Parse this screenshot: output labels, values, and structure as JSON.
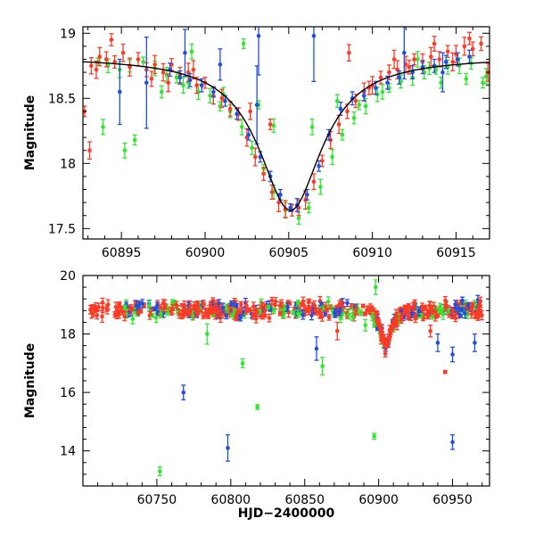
{
  "colors": {
    "green": "#2ee82e",
    "red": "#ff3a24",
    "blue": "#1f4fe0",
    "model": "#000000",
    "axis": "#000000"
  },
  "chart_data": [
    {
      "type": "scatter",
      "title": "",
      "xlabel": "",
      "ylabel": "Magnitude",
      "xlim": [
        60892.7,
        60917
      ],
      "ylim": [
        19.05,
        17.42
      ],
      "y_inverted": true,
      "xticks": [
        60895,
        60900,
        60905,
        60910,
        60915
      ],
      "yticks": [
        17.5,
        18,
        18.5,
        19
      ],
      "xtick_labels": [
        "60895",
        "60900",
        "60905",
        "60910",
        "60915"
      ],
      "ytick_labels": [
        "17.5",
        "18",
        "18.5",
        "19"
      ],
      "model": {
        "type": "line",
        "baseline_mag": 18.82,
        "peak_mag": 17.64,
        "t0": 60905.1,
        "width_days": 2.3
      },
      "series": [
        {
          "name": "green",
          "color": "#2ee82e",
          "err": 0.03,
          "x": [
            60893.6,
            60894.2,
            60894.9,
            60895.5,
            60896.3,
            60897.0,
            60897.7,
            60898.3,
            60899.0,
            60899.6,
            60900.3,
            60900.9,
            60901.5,
            60902.2,
            60902.8,
            60903.5,
            60904.1,
            60904.8,
            60905.6,
            60906.2,
            60906.9,
            60907.6,
            60908.2,
            60908.9,
            60909.6,
            60910.3,
            60911.0,
            60911.7,
            60912.4,
            60913.1,
            60913.8,
            60914.5,
            60915.2,
            60915.9,
            60916.6,
            60893.9,
            60895.2,
            60895.8,
            60897.4,
            60898.7,
            60901.1,
            60903.2,
            60904.1,
            60906.4,
            60907.9,
            60909.2,
            60910.6,
            60912.7,
            60914.1,
            60915.6,
            60916.8,
            60899.2,
            60902.3,
            60913.4
          ],
          "y": [
            18.78,
            18.75,
            18.72,
            18.75,
            18.78,
            18.73,
            18.68,
            18.66,
            18.62,
            18.55,
            18.52,
            18.44,
            18.4,
            18.28,
            18.12,
            17.96,
            17.78,
            17.64,
            17.58,
            17.66,
            17.82,
            18.05,
            18.22,
            18.35,
            18.44,
            18.53,
            18.58,
            18.63,
            18.66,
            18.7,
            18.72,
            18.74,
            18.75,
            18.77,
            18.62,
            18.28,
            18.1,
            18.18,
            18.55,
            18.6,
            18.53,
            18.45,
            18.29,
            18.28,
            18.48,
            18.45,
            18.55,
            18.8,
            18.62,
            18.65,
            18.67,
            18.86,
            18.92,
            18.73
          ]
        },
        {
          "name": "red",
          "color": "#ff3a24",
          "err": 0.04,
          "x": [
            60892.8,
            60893.2,
            60893.7,
            60894.1,
            60894.6,
            60895.1,
            60895.5,
            60896.0,
            60896.5,
            60897.0,
            60897.5,
            60898.0,
            60898.5,
            60899.0,
            60899.5,
            60900.0,
            60900.5,
            60901.0,
            60901.5,
            60902.0,
            60902.5,
            60903.0,
            60903.5,
            60904.0,
            60904.4,
            60904.8,
            60905.2,
            60905.6,
            60906.0,
            60906.5,
            60907.0,
            60907.5,
            60908.0,
            60908.5,
            60909.0,
            60909.5,
            60910.0,
            60910.5,
            60911.0,
            60911.5,
            60912.0,
            60912.5,
            60913.0,
            60913.5,
            60914.0,
            60914.5,
            60915.0,
            60915.5,
            60916.0,
            60916.5,
            60916.9,
            60893.1,
            60894.4,
            60896.8,
            60899.3,
            60902.7,
            60903.9,
            60908.6,
            60911.3,
            60913.7,
            60915.8,
            60893.5,
            60897.8,
            60909.8,
            60912.2,
            60914.8
          ],
          "y": [
            18.4,
            18.75,
            18.82,
            18.8,
            18.78,
            18.85,
            18.74,
            18.8,
            18.72,
            18.76,
            18.7,
            18.76,
            18.68,
            18.7,
            18.6,
            18.62,
            18.52,
            18.5,
            18.42,
            18.38,
            18.2,
            18.05,
            17.92,
            17.78,
            17.7,
            17.65,
            17.64,
            17.66,
            17.72,
            17.86,
            18.02,
            18.18,
            18.3,
            18.4,
            18.48,
            18.55,
            18.6,
            18.66,
            18.7,
            18.72,
            18.76,
            18.8,
            18.78,
            18.82,
            18.8,
            18.86,
            18.84,
            18.9,
            18.88,
            18.92,
            18.7,
            18.1,
            18.95,
            18.65,
            18.72,
            18.4,
            18.3,
            18.85,
            18.8,
            18.92,
            18.96,
            18.72,
            18.62,
            18.58,
            18.74,
            18.78
          ]
        },
        {
          "name": "blue",
          "color": "#1f4fe0",
          "err": 0.04,
          "x": [
            60894.9,
            60896.5,
            60897.9,
            60898.5,
            60899.1,
            60899.8,
            60900.5,
            60901.2,
            60901.9,
            60902.6,
            60903.3,
            60903.9,
            60904.5,
            60905.1,
            60905.5,
            60906.1,
            60906.8,
            60907.4,
            60908.1,
            60908.8,
            60909.5,
            60910.2,
            60910.9,
            60911.6,
            60912.4,
            60913.0,
            60913.7,
            60914.4,
            60915.1,
            60915.8,
            60898.8,
            60900.9,
            60903.1,
            60903.2,
            60906.5,
            60911.9,
            60914.2
          ],
          "y": [
            18.55,
            18.62,
            18.72,
            18.66,
            18.64,
            18.6,
            18.55,
            18.48,
            18.38,
            18.22,
            18.05,
            17.9,
            17.76,
            17.66,
            17.68,
            17.76,
            17.98,
            18.22,
            18.42,
            18.5,
            18.52,
            18.58,
            18.62,
            18.66,
            18.7,
            18.74,
            18.75,
            18.78,
            18.8,
            18.82,
            18.85,
            18.76,
            18.45,
            18.98,
            18.98,
            18.85,
            18.7
          ],
          "errs": [
            0.25,
            0.35,
            0.05,
            0.05,
            0.05,
            0.05,
            0.04,
            0.04,
            0.04,
            0.04,
            0.04,
            0.04,
            0.04,
            0.03,
            0.05,
            0.04,
            0.04,
            0.04,
            0.05,
            0.05,
            0.04,
            0.05,
            0.05,
            0.05,
            0.05,
            0.05,
            0.05,
            0.05,
            0.05,
            0.05,
            0.18,
            0.12,
            0.3,
            0.3,
            0.35,
            0.2,
            0.15
          ]
        }
      ]
    },
    {
      "type": "scatter",
      "title": "",
      "xlabel": "HJD−2400000",
      "ylabel": "Magnitude",
      "xlim": [
        60700,
        60975
      ],
      "ylim": [
        20,
        12.8
      ],
      "y_inverted": true,
      "xticks": [
        60750,
        60800,
        60850,
        60900,
        60950
      ],
      "yticks": [
        14,
        16,
        18,
        20
      ],
      "xtick_labels": [
        "60750",
        "60800",
        "60850",
        "60900",
        "60950"
      ],
      "ytick_labels": [
        "14",
        "16",
        "18",
        "20"
      ],
      "band": {
        "x_start": 60705,
        "x_end": 60970,
        "center_mag": 18.85,
        "scatter": 0.35
      },
      "flare": {
        "t0": 60905.1,
        "peak_mag": 17.6,
        "width_days": 4
      },
      "outliers": [
        {
          "x": 60752,
          "y": 13.3,
          "err": 0.15,
          "series": "green"
        },
        {
          "x": 60768,
          "y": 16.0,
          "err": 0.25,
          "series": "blue"
        },
        {
          "x": 60798,
          "y": 14.1,
          "err": 0.45,
          "series": "blue"
        },
        {
          "x": 60818,
          "y": 15.5,
          "err": 0.08,
          "series": "green"
        },
        {
          "x": 60808,
          "y": 17.0,
          "err": 0.15,
          "series": "green"
        },
        {
          "x": 60897,
          "y": 14.5,
          "err": 0.1,
          "series": "green"
        },
        {
          "x": 60950,
          "y": 14.3,
          "err": 0.25,
          "series": "blue"
        },
        {
          "x": 60945,
          "y": 16.7,
          "err": 0.05,
          "series": "red"
        },
        {
          "x": 60950,
          "y": 17.3,
          "err": 0.25,
          "series": "blue"
        },
        {
          "x": 60965,
          "y": 17.7,
          "err": 0.3,
          "series": "blue"
        },
        {
          "x": 60940,
          "y": 17.7,
          "err": 0.3,
          "series": "blue"
        },
        {
          "x": 60862,
          "y": 16.9,
          "err": 0.3,
          "series": "green"
        },
        {
          "x": 60858,
          "y": 17.5,
          "err": 0.4,
          "series": "blue"
        },
        {
          "x": 60784,
          "y": 18.0,
          "err": 0.35,
          "series": "green"
        },
        {
          "x": 60872,
          "y": 18.1,
          "err": 0.3,
          "series": "red"
        },
        {
          "x": 60891,
          "y": 18.3,
          "err": 0.2,
          "series": "green"
        },
        {
          "x": 60935,
          "y": 18.1,
          "err": 0.2,
          "series": "red"
        },
        {
          "x": 60713,
          "y": 18.6,
          "err": 0.2,
          "series": "red"
        },
        {
          "x": 60898,
          "y": 19.6,
          "err": 0.25,
          "series": "green"
        }
      ]
    }
  ]
}
